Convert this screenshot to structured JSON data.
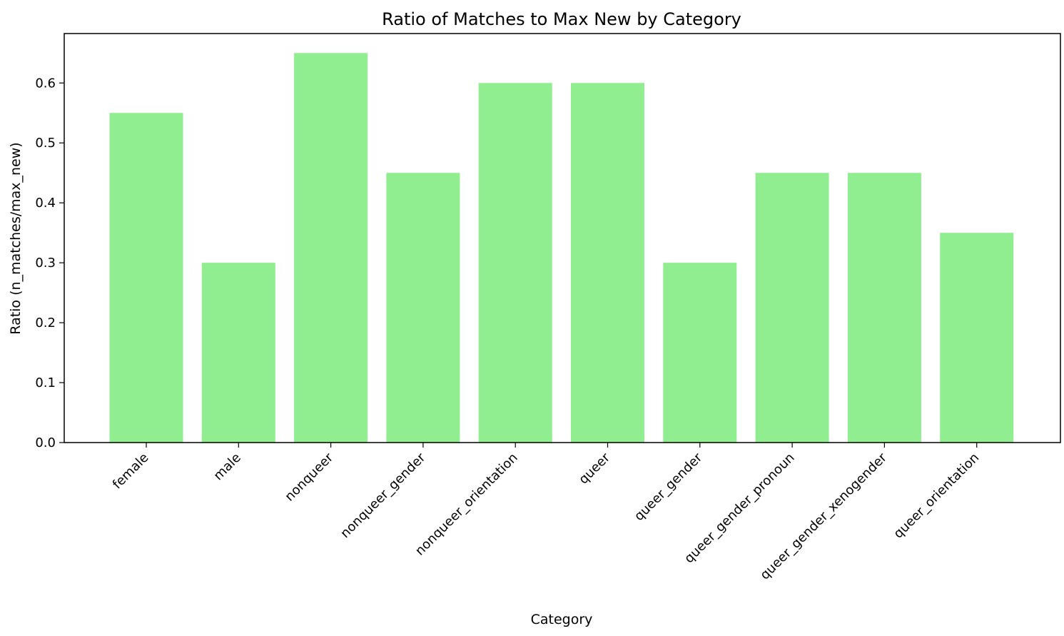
{
  "chart_data": {
    "type": "bar",
    "title": "Ratio of Matches to Max New by Category",
    "xlabel": "Category",
    "ylabel": "Ratio (n_matches/max_new)",
    "categories": [
      "female",
      "male",
      "nonqueer",
      "nonqueer_gender",
      "nonqueer_orientation",
      "queer",
      "queer_gender",
      "queer_gender_pronoun",
      "queer_gender_xenogender",
      "queer_orientation"
    ],
    "values": [
      0.55,
      0.3,
      0.65,
      0.45,
      0.6,
      0.6,
      0.3,
      0.45,
      0.45,
      0.35
    ],
    "ylim": [
      0,
      0.6825
    ],
    "yticks": [
      "0.0",
      "0.1",
      "0.2",
      "0.3",
      "0.4",
      "0.5",
      "0.6"
    ],
    "ytick_values": [
      0,
      0.1,
      0.2,
      0.3,
      0.4,
      0.5,
      0.6
    ],
    "bar_color": "#90ee90",
    "grid": false,
    "legend": "none"
  }
}
